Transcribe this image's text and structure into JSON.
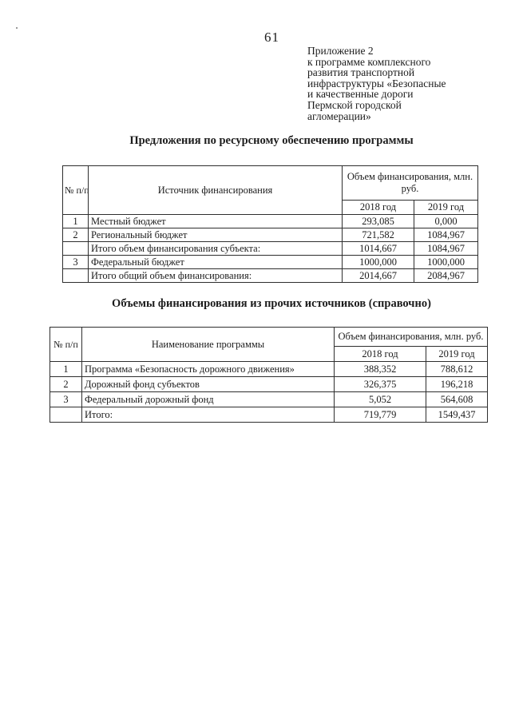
{
  "page": {
    "number": "61",
    "appendix_lines": [
      "Приложение 2",
      "к программе комплексного",
      "развития транспортной",
      "инфраструктуры «Безопасные",
      "и качественные дороги",
      "Пермской городской",
      "агломерации»"
    ]
  },
  "section1": {
    "title": "Предложения по ресурсному обеспечению программы",
    "table": {
      "col_num": "№ п/п",
      "col_name": "Источник финансирования",
      "col_amount": "Объем финансирования, млн. руб.",
      "col_2018": "2018 год",
      "col_2019": "2019 год",
      "rows": [
        {
          "num": "1",
          "name": "Местный бюджет",
          "y2018": "293,085",
          "y2019": "0,000"
        },
        {
          "num": "2",
          "name": "Региональный бюджет",
          "y2018": "721,582",
          "y2019": "1084,967"
        },
        {
          "num": "",
          "name": "Итого объем финансирования субъекта:",
          "y2018": "1014,667",
          "y2019": "1084,967"
        },
        {
          "num": "3",
          "name": "Федеральный бюджет",
          "y2018": "1000,000",
          "y2019": "1000,000"
        },
        {
          "num": "",
          "name": "Итого общий объем финансирования:",
          "y2018": "2014,667",
          "y2019": "2084,967"
        }
      ]
    }
  },
  "section2": {
    "title": "Объемы финансирования из прочих источников (справочно)",
    "table": {
      "col_num": "№ п/п",
      "col_name": "Наименование программы",
      "col_amount": "Объем финансирования, млн. руб.",
      "col_2018": "2018 год",
      "col_2019": "2019 год",
      "rows": [
        {
          "num": "1",
          "name": "Программа «Безопасность дорожного движения»",
          "y2018": "388,352",
          "y2019": "788,612"
        },
        {
          "num": "2",
          "name": "Дорожный фонд субъектов",
          "y2018": "326,375",
          "y2019": "196,218"
        },
        {
          "num": "3",
          "name": "Федеральный дорожный фонд",
          "y2018": "5,052",
          "y2019": "564,608"
        },
        {
          "num": "",
          "name": "Итого:",
          "y2018": "719,779",
          "y2019": "1549,437"
        }
      ]
    }
  }
}
